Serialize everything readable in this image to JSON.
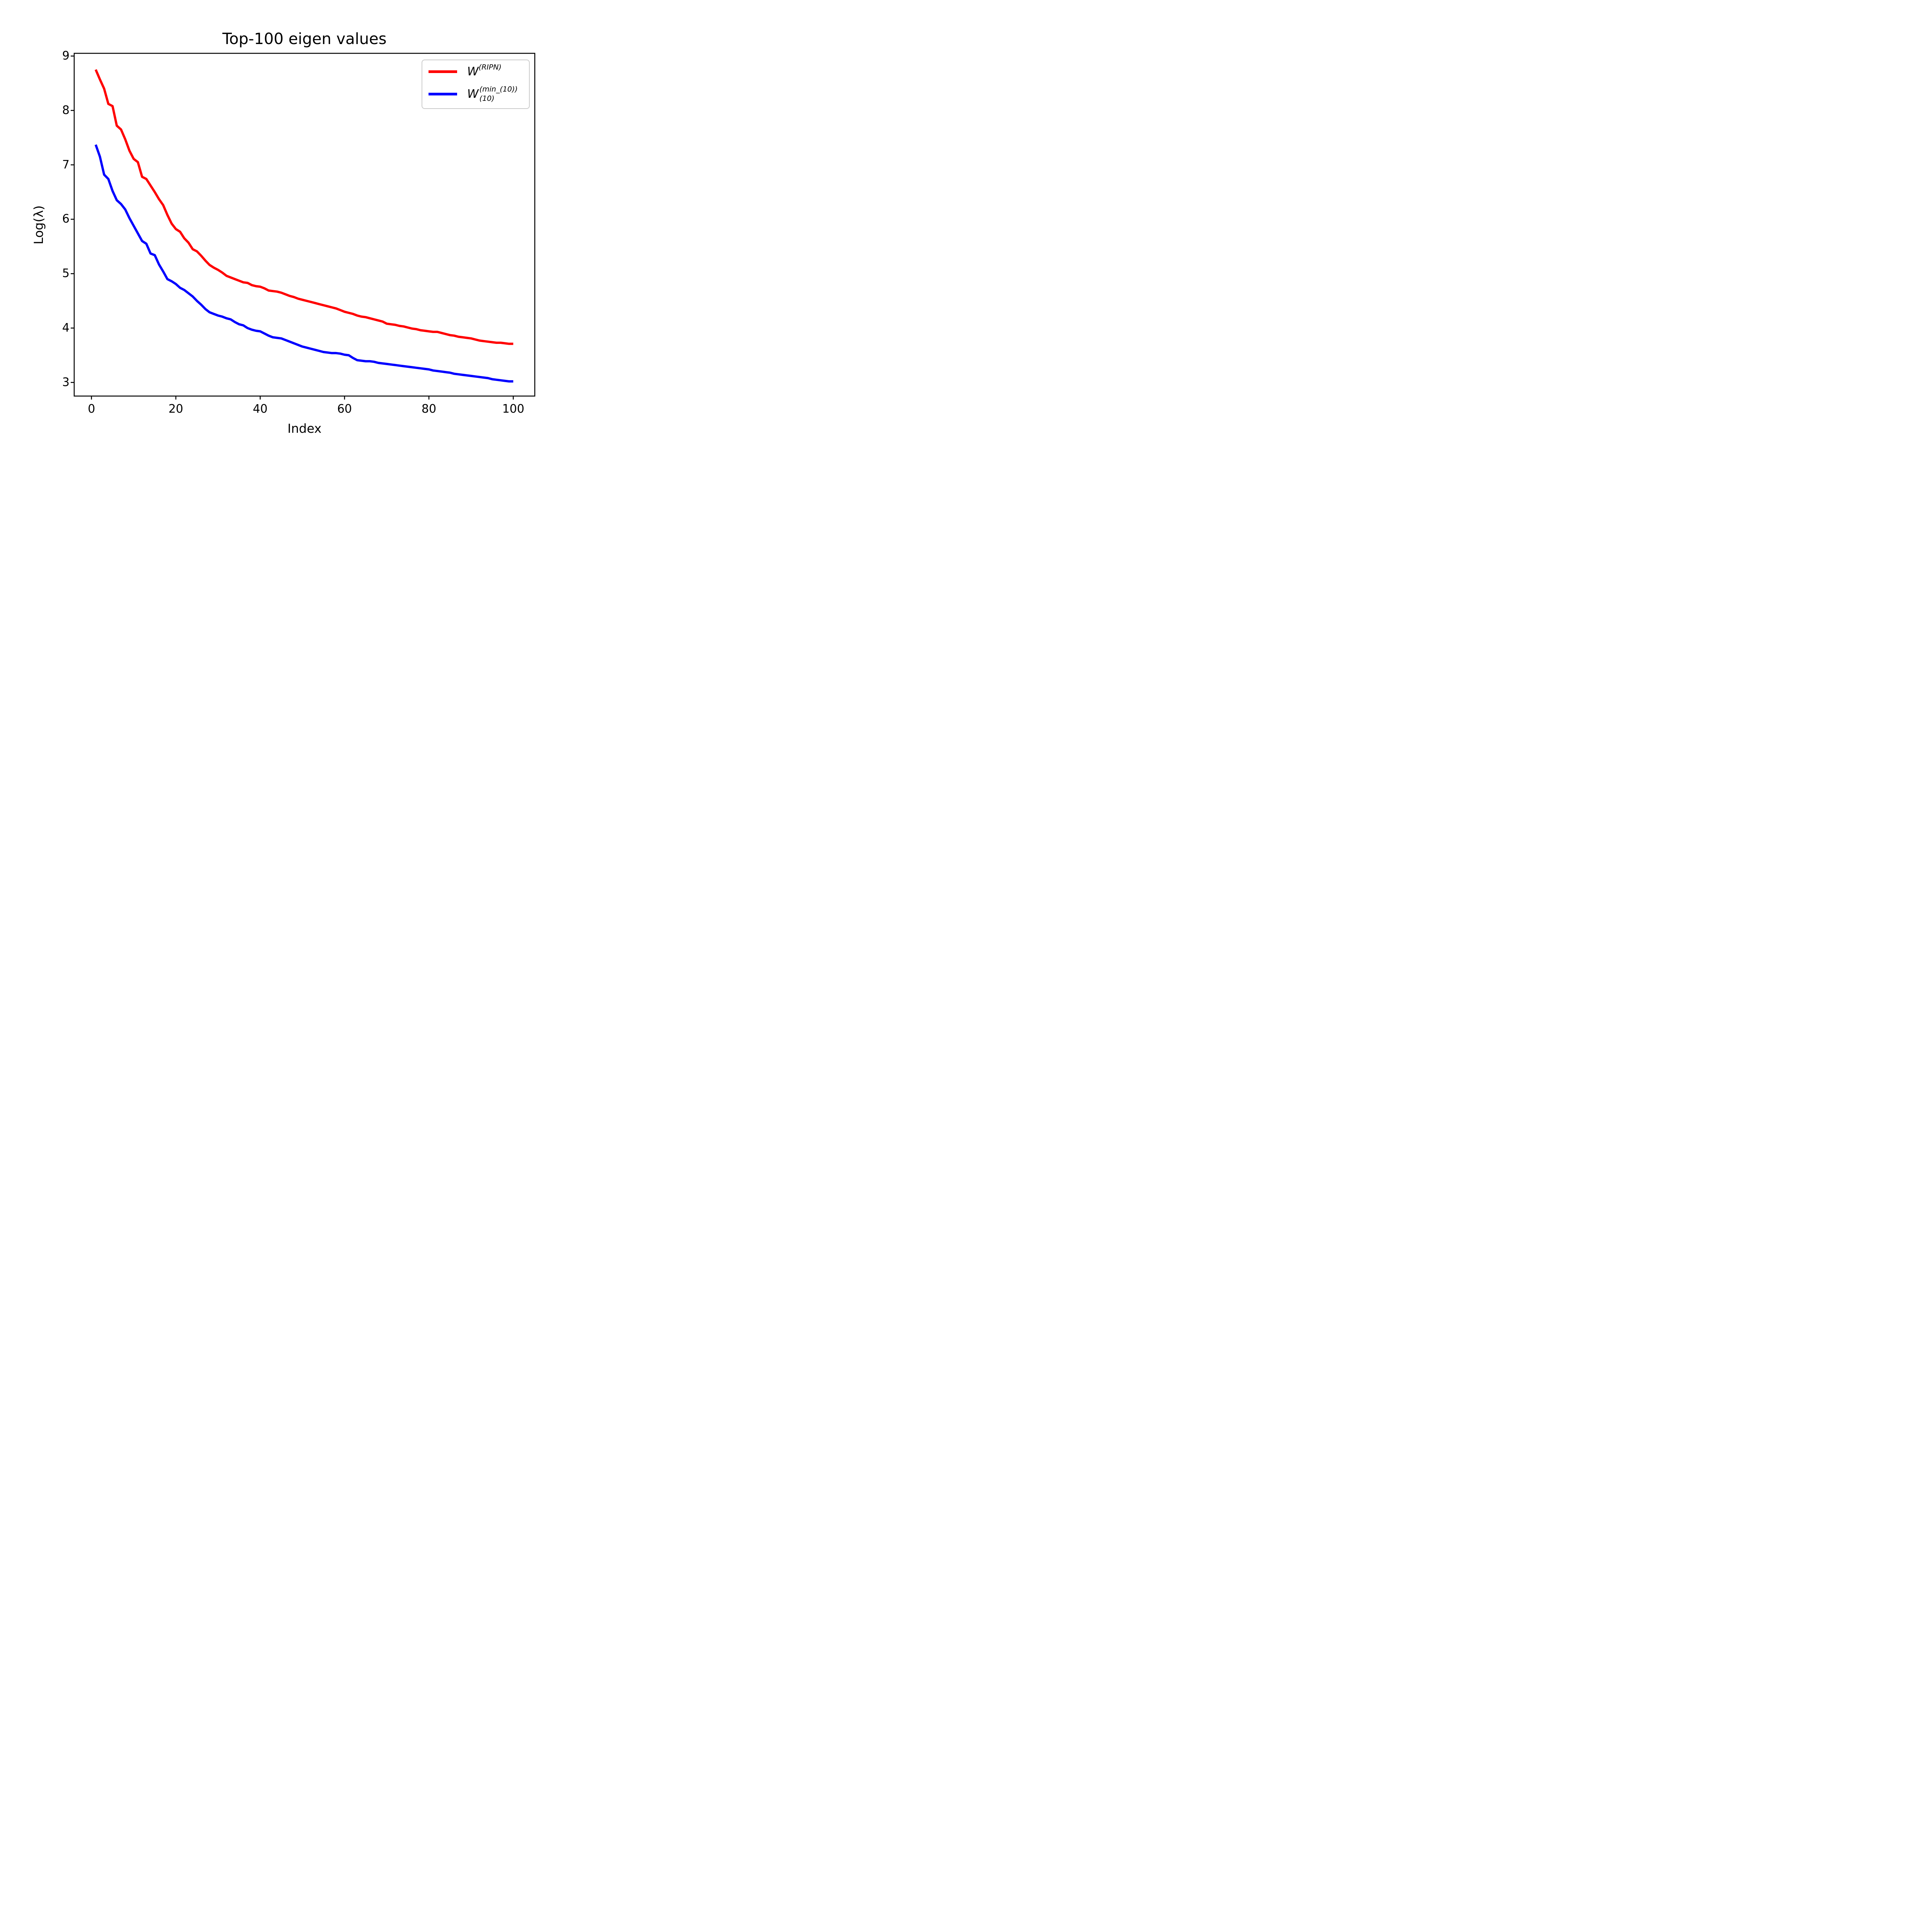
{
  "figure": {
    "background": "#ffffff"
  },
  "chart_data": {
    "type": "line",
    "title": "Top-100 eigen values",
    "xlabel": "Index",
    "ylabel": "Log(λ)",
    "grid": false,
    "legend_position": "upper right",
    "x_start_index": 1,
    "x_ticks": [
      0,
      20,
      40,
      60,
      80,
      100
    ],
    "y_ticks": [
      3,
      4,
      5,
      6,
      7,
      8,
      9
    ],
    "xlim": [
      -4.1,
      105.1
    ],
    "ylim": [
      2.75,
      9.05
    ],
    "series": [
      {
        "name": "W^(RIPN)",
        "color": "#ff0000",
        "values": [
          8.75,
          8.57,
          8.4,
          8.12,
          8.08,
          7.72,
          7.65,
          7.47,
          7.26,
          7.11,
          7.05,
          6.78,
          6.74,
          6.62,
          6.5,
          6.37,
          6.26,
          6.08,
          5.92,
          5.82,
          5.77,
          5.65,
          5.57,
          5.45,
          5.41,
          5.33,
          5.24,
          5.16,
          5.11,
          5.07,
          5.02,
          4.96,
          4.93,
          4.9,
          4.87,
          4.84,
          4.83,
          4.79,
          4.77,
          4.76,
          4.73,
          4.69,
          4.68,
          4.67,
          4.65,
          4.62,
          4.59,
          4.57,
          4.54,
          4.52,
          4.5,
          4.48,
          4.46,
          4.44,
          4.42,
          4.4,
          4.38,
          4.36,
          4.33,
          4.3,
          4.28,
          4.26,
          4.23,
          4.21,
          4.2,
          4.18,
          4.16,
          4.14,
          4.12,
          4.08,
          4.07,
          4.06,
          4.04,
          4.03,
          4.01,
          3.99,
          3.98,
          3.96,
          3.95,
          3.94,
          3.93,
          3.93,
          3.91,
          3.89,
          3.87,
          3.86,
          3.84,
          3.83,
          3.82,
          3.81,
          3.79,
          3.77,
          3.76,
          3.75,
          3.74,
          3.73,
          3.73,
          3.72,
          3.71,
          3.71
        ]
      },
      {
        "name": "W_(10)^(min_(10))",
        "color": "#0000ff",
        "values": [
          7.37,
          7.15,
          6.82,
          6.74,
          6.52,
          6.35,
          6.28,
          6.18,
          6.02,
          5.88,
          5.74,
          5.6,
          5.55,
          5.37,
          5.34,
          5.17,
          5.04,
          4.9,
          4.86,
          4.81,
          4.74,
          4.7,
          4.64,
          4.58,
          4.5,
          4.43,
          4.35,
          4.29,
          4.26,
          4.23,
          4.21,
          4.18,
          4.16,
          4.11,
          4.07,
          4.05,
          4.0,
          3.97,
          3.95,
          3.94,
          3.9,
          3.86,
          3.83,
          3.82,
          3.81,
          3.78,
          3.75,
          3.72,
          3.69,
          3.66,
          3.64,
          3.62,
          3.6,
          3.58,
          3.56,
          3.55,
          3.54,
          3.54,
          3.53,
          3.51,
          3.5,
          3.45,
          3.41,
          3.4,
          3.39,
          3.39,
          3.38,
          3.36,
          3.35,
          3.34,
          3.33,
          3.32,
          3.31,
          3.3,
          3.29,
          3.28,
          3.27,
          3.26,
          3.25,
          3.24,
          3.22,
          3.21,
          3.2,
          3.19,
          3.18,
          3.16,
          3.15,
          3.14,
          3.13,
          3.12,
          3.11,
          3.1,
          3.09,
          3.08,
          3.06,
          3.05,
          3.04,
          3.03,
          3.02,
          3.02
        ]
      }
    ]
  },
  "legend": {
    "items": [
      {
        "base": "W",
        "sup": "(RIPN)",
        "sub": "",
        "color": "#ff0000"
      },
      {
        "base": "W",
        "sup": "(min_(10))",
        "sub": "(10)",
        "color": "#0000ff"
      }
    ]
  },
  "colors": {
    "axis": "#000000",
    "legend_border": "#cccccc",
    "series_red": "#ff0000",
    "series_blue": "#0000ff"
  }
}
